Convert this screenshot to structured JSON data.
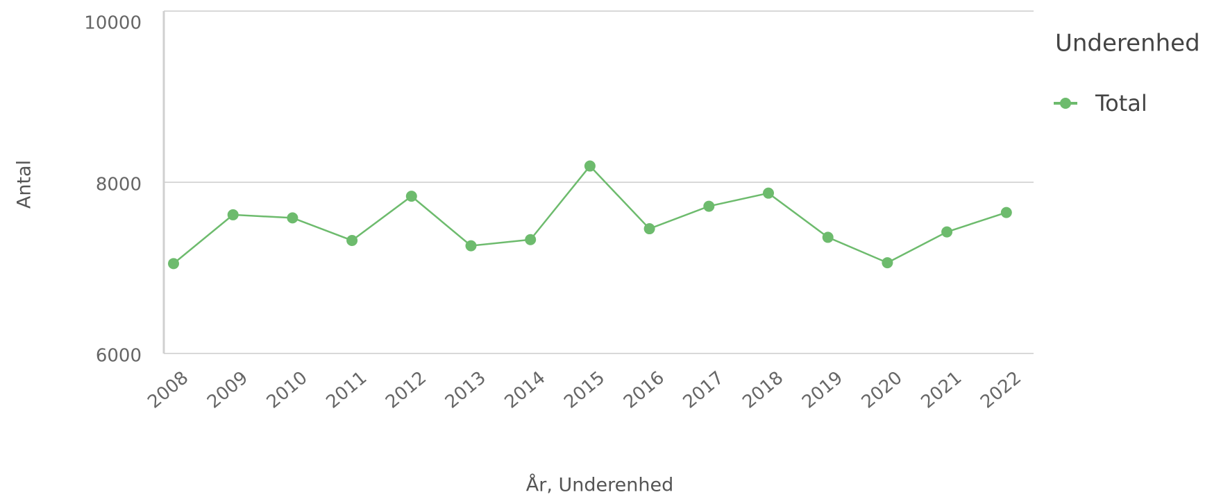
{
  "chart_data": {
    "type": "line",
    "categories": [
      "2008",
      "2009",
      "2010",
      "2011",
      "2012",
      "2013",
      "2014",
      "2015",
      "2016",
      "2017",
      "2018",
      "2019",
      "2020",
      "2021",
      "2022"
    ],
    "series": [
      {
        "name": "Total",
        "color": "#6dbb6d",
        "values": [
          7050,
          7620,
          7584,
          7320,
          7837,
          7258,
          7330,
          8190,
          7457,
          7720,
          7873,
          7357,
          7060,
          7420,
          7647
        ]
      }
    ],
    "ylim": [
      6000,
      10000
    ],
    "yticks": [
      6000,
      8000,
      10000
    ],
    "y_label": "Antal",
    "x_label": "År, Underenhed",
    "legend_title": "Underenhed",
    "grid": true
  }
}
